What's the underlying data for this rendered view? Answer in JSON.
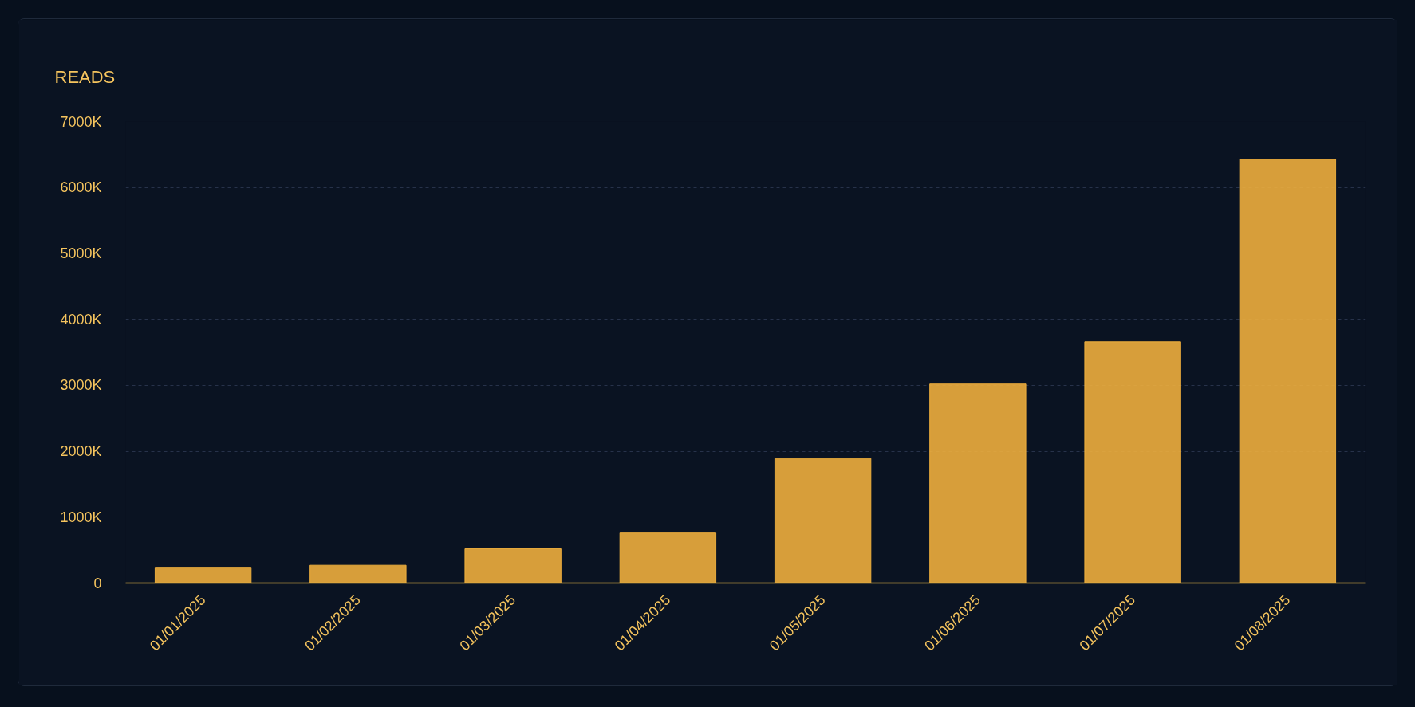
{
  "chart_data": {
    "type": "bar",
    "title": "READS",
    "categories": [
      "01/01/2025",
      "01/02/2025",
      "01/03/2025",
      "01/04/2025",
      "01/05/2025",
      "01/06/2025",
      "01/07/2025",
      "01/08/2025"
    ],
    "values": [
      240,
      270,
      520,
      760,
      1890,
      3020,
      3660,
      6430
    ],
    "color": "#f4b23e",
    "ylim": [
      0,
      7000
    ],
    "yticks": [
      0,
      {
        "value": 1000,
        "label": "1000K"
      },
      {
        "value": 2000,
        "label": "2000K"
      },
      {
        "value": 3000,
        "label": "3000K"
      },
      {
        "value": 4000,
        "label": "4000K"
      },
      {
        "value": 5000,
        "label": "5000K"
      },
      {
        "value": 6000,
        "label": "6000K"
      },
      {
        "value": 7000,
        "label": "7000K"
      }
    ],
    "grid": "y"
  }
}
